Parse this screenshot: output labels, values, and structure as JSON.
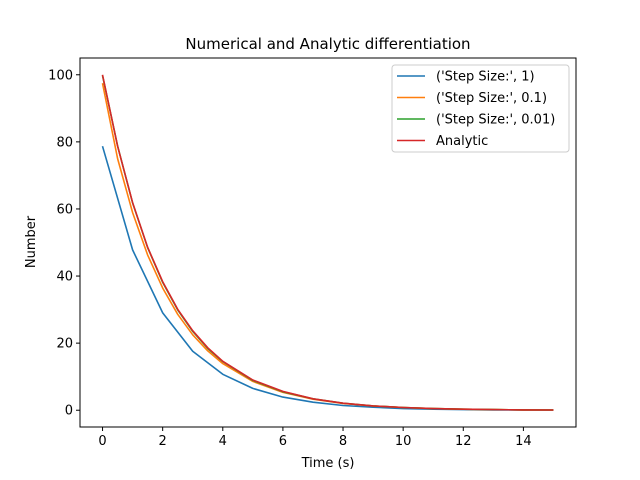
{
  "chart_data": {
    "type": "line",
    "title": "Numerical and Analytic differentiation",
    "xlabel": "Time (s)",
    "ylabel": "Number",
    "xlim": [
      -0.75,
      15.75
    ],
    "ylim": [
      -5,
      105
    ],
    "xticks": [
      0,
      2,
      4,
      6,
      8,
      10,
      12,
      14
    ],
    "yticks": [
      0,
      20,
      40,
      60,
      80,
      100
    ],
    "grid": false,
    "legend_position": "top-right",
    "series": [
      {
        "name": "('Step Size:', 1)",
        "color": "#1f77b4",
        "x": [
          0,
          1,
          2,
          3,
          4,
          5,
          6,
          7,
          8,
          9,
          10,
          11,
          12,
          13,
          14,
          15
        ],
        "y": [
          78.7,
          47.8,
          29.0,
          17.6,
          10.7,
          6.5,
          3.9,
          2.4,
          1.4,
          0.9,
          0.5,
          0.3,
          0.2,
          0.1,
          0.07,
          0.04
        ]
      },
      {
        "name": "('Step Size:', 0.1)",
        "color": "#ff7f0e",
        "x": [
          0,
          0.5,
          1,
          1.5,
          2,
          2.5,
          3,
          3.5,
          4,
          5,
          6,
          7,
          8,
          9,
          10,
          11,
          12,
          13,
          14,
          15
        ],
        "y": [
          97.5,
          75.0,
          58.9,
          46.3,
          36.4,
          28.6,
          22.5,
          17.7,
          13.9,
          8.6,
          5.3,
          3.3,
          2.0,
          1.3,
          0.8,
          0.5,
          0.3,
          0.2,
          0.1,
          0.07
        ]
      },
      {
        "name": "('Step Size:', 0.01)",
        "color": "#2ca02c",
        "x": [
          0,
          0.5,
          1,
          1.5,
          2,
          2.5,
          3,
          3.5,
          4,
          5,
          6,
          7,
          8,
          9,
          10,
          11,
          12,
          13,
          14,
          15
        ],
        "y": [
          99.8,
          78.8,
          61.8,
          48.5,
          38.1,
          29.9,
          23.5,
          18.4,
          14.5,
          8.9,
          5.5,
          3.4,
          2.1,
          1.3,
          0.8,
          0.5,
          0.3,
          0.2,
          0.1,
          0.07
        ]
      },
      {
        "name": "Analytic",
        "color": "#d62728",
        "x": [
          0,
          0.5,
          1,
          1.5,
          2,
          2.5,
          3,
          3.5,
          4,
          5,
          6,
          7,
          8,
          9,
          10,
          11,
          12,
          13,
          14,
          15
        ],
        "y": [
          100,
          78.7,
          61.9,
          48.6,
          38.3,
          30.1,
          23.7,
          18.6,
          14.6,
          9.0,
          5.6,
          3.4,
          2.1,
          1.3,
          0.8,
          0.5,
          0.3,
          0.2,
          0.1,
          0.07
        ]
      }
    ]
  }
}
